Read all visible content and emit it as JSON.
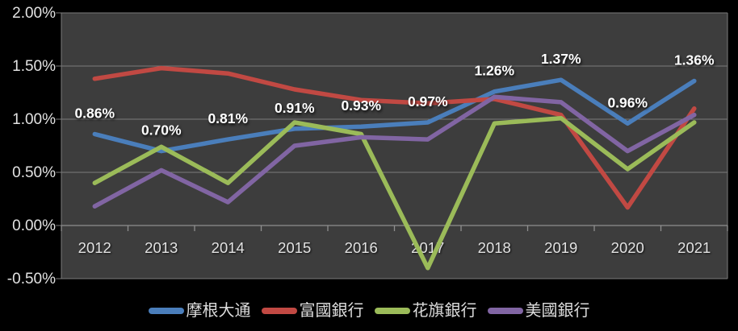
{
  "chart_data": {
    "type": "line",
    "title": "",
    "x_labels": [
      "2012",
      "2013",
      "2014",
      "2015",
      "2016",
      "2017",
      "2018",
      "2019",
      "2020",
      "2021"
    ],
    "y_axis": {
      "tick_labels": [
        "2.00%",
        "1.50%",
        "1.00%",
        "0.50%",
        "0.00%",
        "-0.50%"
      ],
      "tick_values": [
        2.0,
        1.5,
        1.0,
        0.5,
        0.0,
        -0.5
      ],
      "min": -0.5,
      "max": 2.0,
      "step": 0.5,
      "unit": "%"
    },
    "grid": true,
    "legend_position": "bottom",
    "series": [
      {
        "id": "jpmorgan-chase",
        "name": "摩根大通",
        "color": "#4a7ebb",
        "values": [
          0.86,
          0.7,
          0.81,
          0.91,
          0.93,
          0.97,
          1.26,
          1.37,
          0.96,
          1.36
        ],
        "data_labels": [
          "0.86%",
          "0.70%",
          "0.81%",
          "0.91%",
          "0.93%",
          "0.97%",
          "1.26%",
          "1.37%",
          "0.96%",
          "1.36%"
        ]
      },
      {
        "id": "wells-fargo",
        "name": "富國銀行",
        "color": "#c14943",
        "values": [
          1.38,
          1.48,
          1.43,
          1.28,
          1.18,
          1.15,
          1.19,
          1.04,
          0.17,
          1.1
        ]
      },
      {
        "id": "citibank",
        "name": "花旗銀行",
        "color": "#9bbb59",
        "values": [
          0.4,
          0.74,
          0.4,
          0.97,
          0.86,
          -0.4,
          0.96,
          1.01,
          0.53,
          0.97
        ]
      },
      {
        "id": "bank-of-america",
        "name": "美國銀行",
        "color": "#8165a3",
        "values": [
          0.18,
          0.52,
          0.22,
          0.75,
          0.83,
          0.81,
          1.21,
          1.16,
          0.7,
          1.04
        ]
      }
    ],
    "colors": {
      "outer_background": "#000000",
      "plot_background": "#3d3d3d",
      "gridline": "#7a7a7a",
      "axis_line": "#8f8f8f",
      "axis_label": "#e2e2e2",
      "data_label": "#ffffff"
    }
  }
}
